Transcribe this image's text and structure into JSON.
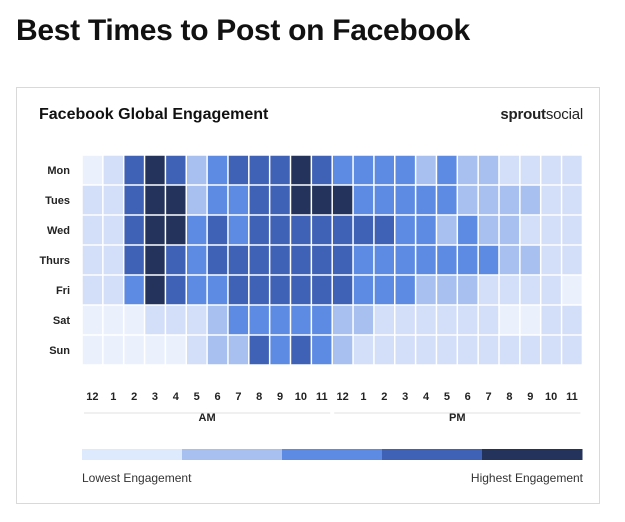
{
  "page": {
    "title": "Best Times to Post on Facebook"
  },
  "brand": {
    "part1": "sprout",
    "part2": "social"
  },
  "colors": {
    "levels": [
      "#eaf1fd",
      "#d3def8",
      "#a8c0ef",
      "#5d8be3",
      "#3f62b6",
      "#24335b"
    ],
    "legend_segments": [
      "#dde9fc",
      "#a8c0ef",
      "#5d8be3",
      "#3f62b6",
      "#24335b"
    ],
    "grid_gap": "#ffffff"
  },
  "chart_data": {
    "type": "heatmap",
    "title": "Facebook Global Engagement",
    "rows": [
      "Mon",
      "Tues",
      "Wed",
      "Thurs",
      "Fri",
      "Sat",
      "Sun"
    ],
    "columns": [
      "12",
      "1",
      "2",
      "3",
      "4",
      "5",
      "6",
      "7",
      "8",
      "9",
      "10",
      "11",
      "12",
      "1",
      "2",
      "3",
      "4",
      "5",
      "6",
      "7",
      "8",
      "9",
      "10",
      "11"
    ],
    "period_labels": [
      {
        "label": "AM",
        "from_column": 0,
        "to_column": 11
      },
      {
        "label": "PM",
        "from_column": 12,
        "to_column": 23
      }
    ],
    "scale": "engagement level 0 (lowest) to 5 (highest)",
    "values": [
      [
        0,
        1,
        4,
        5,
        4,
        2,
        3,
        4,
        4,
        4,
        5,
        4,
        3,
        3,
        3,
        3,
        2,
        3,
        2,
        2,
        1,
        1,
        1,
        1
      ],
      [
        1,
        1,
        4,
        5,
        5,
        2,
        3,
        3,
        4,
        4,
        5,
        5,
        5,
        3,
        3,
        3,
        3,
        3,
        2,
        2,
        2,
        2,
        1,
        1
      ],
      [
        1,
        1,
        4,
        5,
        5,
        3,
        4,
        3,
        4,
        4,
        4,
        4,
        4,
        4,
        4,
        3,
        3,
        2,
        3,
        2,
        2,
        1,
        1,
        1
      ],
      [
        1,
        1,
        4,
        5,
        4,
        3,
        4,
        4,
        4,
        4,
        4,
        4,
        4,
        3,
        3,
        3,
        3,
        3,
        3,
        3,
        2,
        2,
        1,
        1
      ],
      [
        1,
        1,
        3,
        5,
        4,
        3,
        3,
        4,
        4,
        4,
        4,
        4,
        4,
        3,
        3,
        3,
        2,
        2,
        2,
        1,
        1,
        1,
        1,
        0
      ],
      [
        0,
        0,
        0,
        1,
        1,
        1,
        2,
        3,
        3,
        3,
        3,
        3,
        2,
        2,
        1,
        1,
        1,
        1,
        1,
        1,
        0,
        0,
        1,
        1
      ],
      [
        0,
        0,
        0,
        0,
        0,
        1,
        2,
        2,
        4,
        3,
        4,
        3,
        2,
        1,
        1,
        1,
        1,
        1,
        1,
        1,
        1,
        1,
        1,
        1
      ]
    ],
    "legend": {
      "low_label": "Lowest Engagement",
      "high_label": "Highest Engagement"
    }
  }
}
